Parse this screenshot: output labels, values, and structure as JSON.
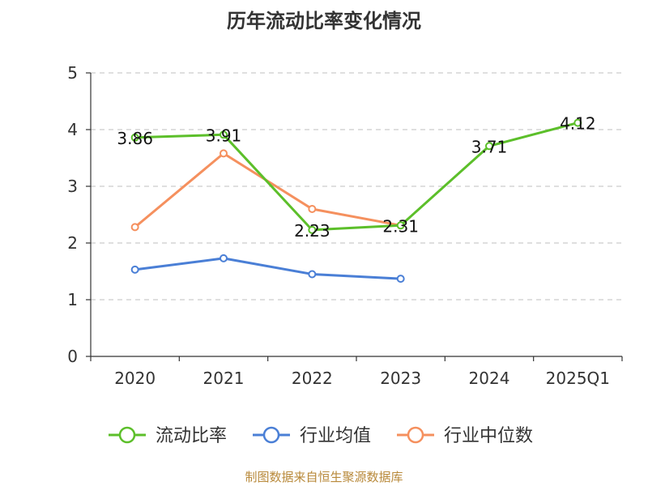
{
  "title": "历年流动比率变化情况",
  "source": "制图数据来自恒生聚源数据库",
  "chart_data": {
    "type": "line",
    "categories": [
      "2020",
      "2021",
      "2022",
      "2023",
      "2024",
      "2025Q1"
    ],
    "ylim": [
      0,
      5
    ],
    "yticks": [
      0,
      1,
      2,
      3,
      4,
      5
    ],
    "grid": true,
    "legend_position": "bottom",
    "series": [
      {
        "name": "流动比率",
        "color": "#5cbf2a",
        "values": [
          3.86,
          3.91,
          2.23,
          2.31,
          3.71,
          4.12
        ],
        "labels": [
          "3.86",
          "3.91",
          "2.23",
          "2.31",
          "3.71",
          "4.12"
        ]
      },
      {
        "name": "行业均值",
        "color": "#4a7fd6",
        "values": [
          1.53,
          1.73,
          1.45,
          1.37,
          null,
          null
        ]
      },
      {
        "name": "行业中位数",
        "color": "#f5905e",
        "values": [
          2.28,
          3.58,
          2.6,
          2.31,
          null,
          null
        ]
      }
    ]
  }
}
